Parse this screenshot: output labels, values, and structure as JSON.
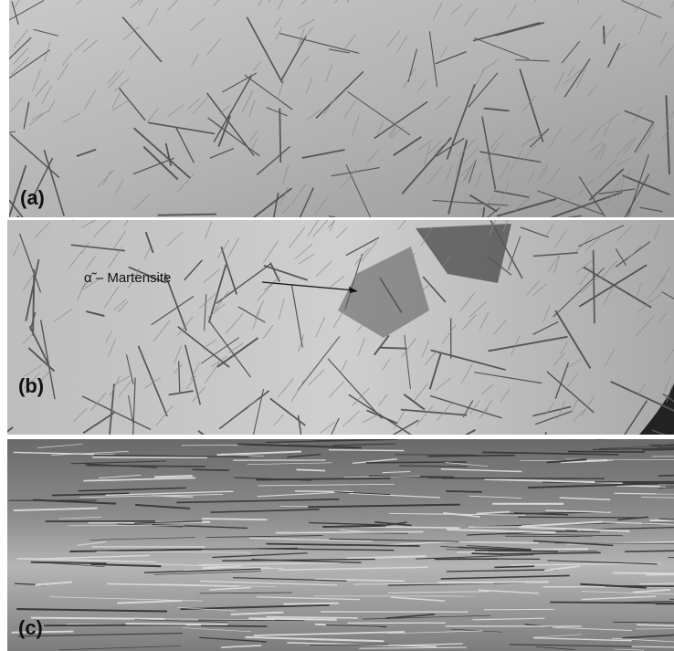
{
  "panels": [
    {
      "label": "(a)"
    },
    {
      "label": "(b)",
      "annotation": "α̃ – Martensite"
    },
    {
      "label": "(c)"
    }
  ]
}
